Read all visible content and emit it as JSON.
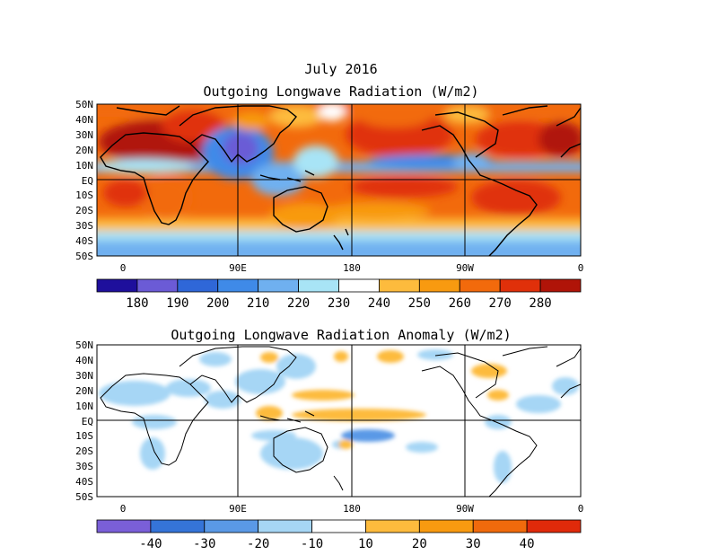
{
  "titles": {
    "date": "July 2016",
    "top_panel": "Outgoing Longwave Radiation (W/m2)",
    "bottom_panel": "Outgoing Longwave Radiation Anomaly (W/m2)"
  },
  "axes": {
    "lat_labels": [
      "50N",
      "40N",
      "30N",
      "20N",
      "10N",
      "EQ",
      "10S",
      "20S",
      "30S",
      "40S",
      "50S"
    ],
    "lon_labels": [
      "0",
      "90E",
      "180",
      "90W",
      "0"
    ]
  },
  "colorbar_top": {
    "labels": [
      "180",
      "190",
      "200",
      "210",
      "220",
      "230",
      "240",
      "250",
      "260",
      "270",
      "280"
    ],
    "colors": [
      "#1e0f9c",
      "#6b5bd6",
      "#2f67d8",
      "#3f8ae8",
      "#6fb0f0",
      "#a8e4f6",
      "#ffffff",
      "#fdbb3d",
      "#f89a10",
      "#f26a0c",
      "#e0300a",
      "#b01408"
    ]
  },
  "colorbar_bottom": {
    "labels": [
      "-40",
      "-30",
      "-20",
      "-10",
      "10",
      "20",
      "30",
      "40"
    ],
    "colors": [
      "#7a5fd8",
      "#3574d8",
      "#5a99e6",
      "#a6d6f5",
      "#ffffff",
      "#fdbb3d",
      "#f89a10",
      "#f06a0c",
      "#e02a0a"
    ]
  }
}
